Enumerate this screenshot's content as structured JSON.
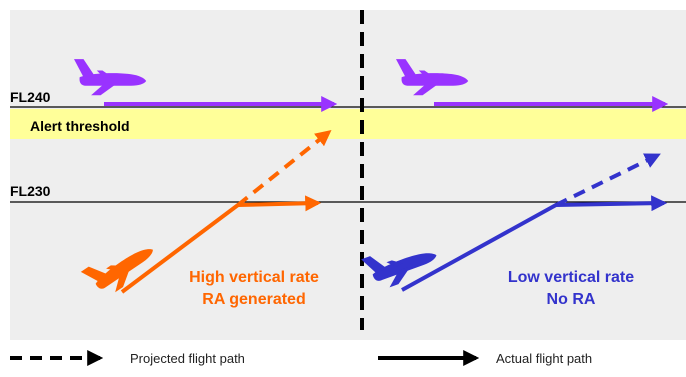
{
  "labels": {
    "fl240": "FL240",
    "fl230": "FL230",
    "alert_threshold": "Alert threshold",
    "left_caption_line1": "High vertical rate",
    "left_caption_line2": "RA generated",
    "right_caption_line1": "Low vertical rate",
    "right_caption_line2": "No RA"
  },
  "legend": {
    "projected": "Projected flight path",
    "actual": "Actual flight path"
  },
  "colors": {
    "background": "#eeeeee",
    "threshold_band": "#ffff99",
    "purple_aircraft": "#9933ff",
    "orange_aircraft": "#ff6600",
    "blue_aircraft": "#3333cc",
    "flight_level_line": "#000000",
    "divider": "#000000"
  },
  "icons": {
    "aircraft": "airplane-icon"
  }
}
